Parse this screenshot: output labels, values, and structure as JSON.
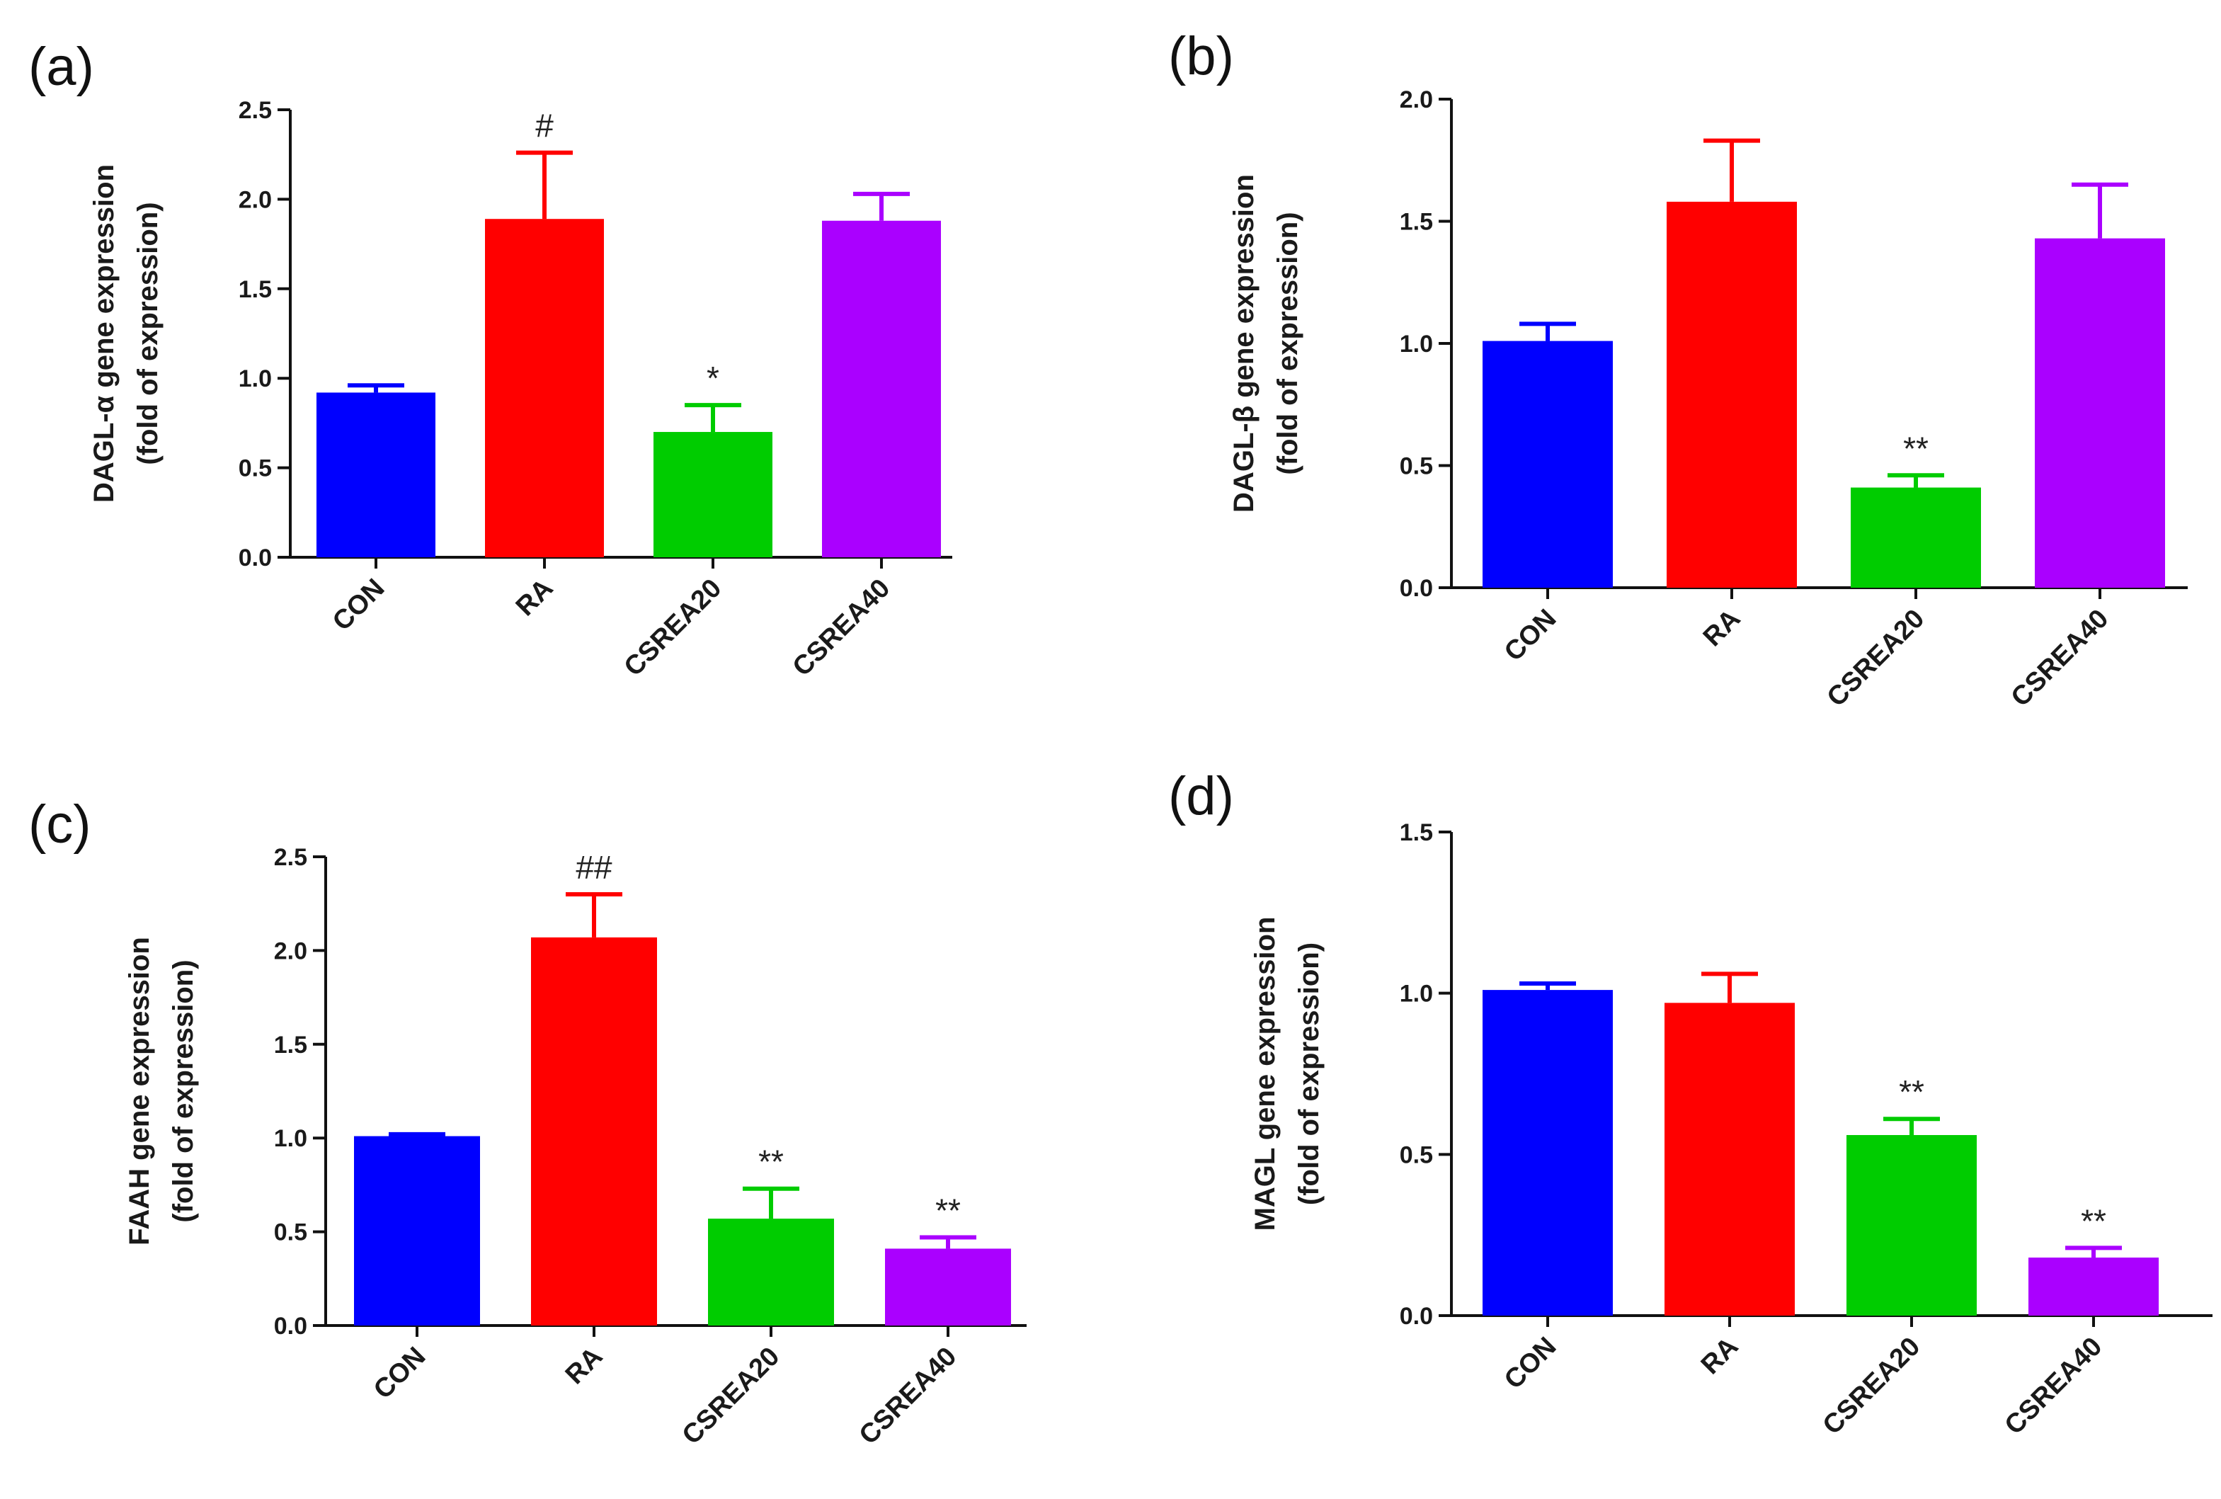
{
  "chart_data": [
    {
      "type": "bar",
      "panel_label": "(a)",
      "categories": [
        "CON",
        "RA",
        "CSREA20",
        "CSREA40"
      ],
      "values": [
        0.92,
        1.89,
        0.7,
        1.88
      ],
      "errors": [
        0.04,
        0.37,
        0.15,
        0.15
      ],
      "annotations": [
        "",
        "#",
        "*",
        ""
      ],
      "colors": [
        "#0000ff",
        "#ff0000",
        "#00cc00",
        "#aa00ff"
      ],
      "ylabel_line1": "DAGL-α  gene expression",
      "ylabel_line2": "(fold of expression)",
      "ylim": [
        0,
        2.5
      ],
      "yticks": [
        "0.0",
        "0.5",
        "1.0",
        "1.5",
        "2.0",
        "2.5"
      ]
    },
    {
      "type": "bar",
      "panel_label": "(b)",
      "categories": [
        "CON",
        "RA",
        "CSREA20",
        "CSREA40"
      ],
      "values": [
        1.01,
        1.58,
        0.41,
        1.43
      ],
      "errors": [
        0.07,
        0.25,
        0.05,
        0.22
      ],
      "annotations": [
        "",
        "",
        "**",
        ""
      ],
      "colors": [
        "#0000ff",
        "#ff0000",
        "#00cc00",
        "#aa00ff"
      ],
      "ylabel_line1": "DAGL-β  gene expression",
      "ylabel_line2": "(fold of expression)",
      "ylim": [
        0,
        2.0
      ],
      "yticks": [
        "0.0",
        "0.5",
        "1.0",
        "1.5",
        "2.0"
      ]
    },
    {
      "type": "bar",
      "panel_label": "(c)",
      "categories": [
        "CON",
        "RA",
        "CSREA20",
        "CSREA40"
      ],
      "values": [
        1.01,
        2.07,
        0.57,
        0.41
      ],
      "errors": [
        0.01,
        0.23,
        0.16,
        0.06
      ],
      "annotations": [
        "",
        "##",
        "**",
        "**"
      ],
      "colors": [
        "#0000ff",
        "#ff0000",
        "#00cc00",
        "#aa00ff"
      ],
      "ylabel_line1": "FAAH  gene expression",
      "ylabel_line2": "(fold of expression)",
      "ylim": [
        0,
        2.5
      ],
      "yticks": [
        "0.0",
        "0.5",
        "1.0",
        "1.5",
        "2.0",
        "2.5"
      ]
    },
    {
      "type": "bar",
      "panel_label": "(d)",
      "categories": [
        "CON",
        "RA",
        "CSREA20",
        "CSREA40"
      ],
      "values": [
        1.01,
        0.97,
        0.56,
        0.18
      ],
      "errors": [
        0.02,
        0.09,
        0.05,
        0.03
      ],
      "annotations": [
        "",
        "",
        "**",
        "**"
      ],
      "colors": [
        "#0000ff",
        "#ff0000",
        "#00cc00",
        "#aa00ff"
      ],
      "ylabel_line1": "MAGL  gene expression",
      "ylabel_line2": "(fold of expression)",
      "ylim": [
        0,
        1.5
      ],
      "yticks": [
        "0.0",
        "0.5",
        "1.0",
        "1.5"
      ]
    }
  ]
}
